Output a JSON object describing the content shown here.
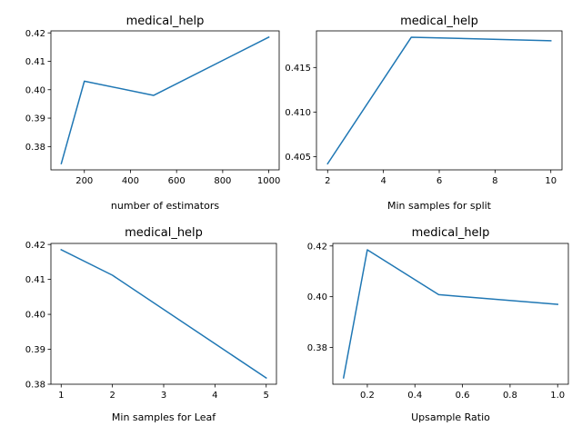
{
  "chart_data": [
    {
      "type": "line",
      "title": "medical_help",
      "xlabel": "number of estimators",
      "ylabel": "",
      "x": [
        100,
        200,
        500,
        1000
      ],
      "series": [
        {
          "values": [
            0.374,
            0.403,
            0.398,
            0.4185
          ]
        }
      ],
      "xlim": [
        55,
        1045
      ],
      "ylim": [
        0.3718,
        0.4207
      ],
      "xticks": [
        200,
        400,
        600,
        800,
        1000
      ],
      "xtick_labels": [
        "200",
        "400",
        "600",
        "800",
        "1000"
      ],
      "yticks": [
        0.38,
        0.39,
        0.4,
        0.41,
        0.42
      ],
      "ytick_labels": [
        "0.38",
        "0.39",
        "0.40",
        "0.41",
        "0.42"
      ],
      "color": "#1f77b4",
      "grid": false
    },
    {
      "type": "line",
      "title": "medical_help",
      "xlabel": "Min samples for split",
      "ylabel": "",
      "x": [
        2,
        5,
        10
      ],
      "series": [
        {
          "values": [
            0.4042,
            0.4184,
            0.418
          ]
        }
      ],
      "xlim": [
        1.6,
        10.4
      ],
      "ylim": [
        0.40351,
        0.41911
      ],
      "xticks": [
        2,
        4,
        6,
        8,
        10
      ],
      "xtick_labels": [
        "2",
        "4",
        "6",
        "8",
        "10"
      ],
      "yticks": [
        0.405,
        0.41,
        0.415
      ],
      "ytick_labels": [
        "0.405",
        "0.410",
        "0.415"
      ],
      "color": "#1f77b4",
      "grid": false
    },
    {
      "type": "line",
      "title": "medical_help",
      "xlabel": "Min samples for Leaf",
      "ylabel": "",
      "x": [
        1,
        2,
        5
      ],
      "series": [
        {
          "values": [
            0.4185,
            0.4112,
            0.3818
          ]
        }
      ],
      "xlim": [
        0.8,
        5.2
      ],
      "ylim": [
        0.38,
        0.4203
      ],
      "xticks": [
        1,
        2,
        3,
        4,
        5
      ],
      "xtick_labels": [
        "1",
        "2",
        "3",
        "4",
        "5"
      ],
      "yticks": [
        0.38,
        0.39,
        0.4,
        0.41,
        0.42
      ],
      "ytick_labels": [
        "0.38",
        "0.39",
        "0.40",
        "0.41",
        "0.42"
      ],
      "color": "#1f77b4",
      "grid": false
    },
    {
      "type": "line",
      "title": "medical_help",
      "xlabel": "Upsample Ratio",
      "ylabel": "",
      "x": [
        0.1,
        0.2,
        0.5,
        1.0
      ],
      "series": [
        {
          "values": [
            0.368,
            0.4185,
            0.4008,
            0.397
          ]
        }
      ],
      "xlim": [
        0.055,
        1.045
      ],
      "ylim": [
        0.3655,
        0.421
      ],
      "xticks": [
        0.2,
        0.4,
        0.6,
        0.8,
        1.0
      ],
      "xtick_labels": [
        "0.2",
        "0.4",
        "0.6",
        "0.8",
        "1.0"
      ],
      "yticks": [
        0.38,
        0.4,
        0.42
      ],
      "ytick_labels": [
        "0.38",
        "0.40",
        "0.42"
      ],
      "color": "#1f77b4",
      "grid": false
    }
  ]
}
